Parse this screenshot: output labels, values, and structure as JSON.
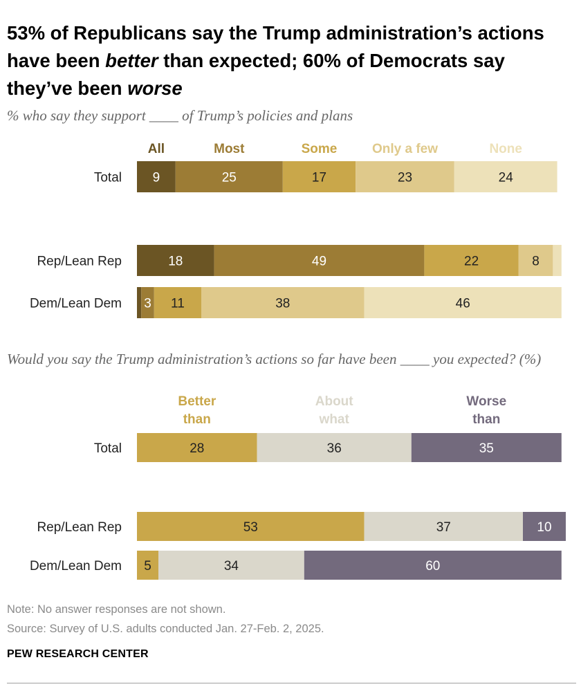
{
  "header": {
    "title_parts": [
      {
        "text": "53% of Republicans say the Trump administration’s actions have been ",
        "italic": false
      },
      {
        "text": "better",
        "italic": true
      },
      {
        "text": " than expected; 60% of Democrats say they’ve been ",
        "italic": false
      },
      {
        "text": "worse",
        "italic": true
      }
    ]
  },
  "chart_data": [
    {
      "type": "bar",
      "orientation": "horizontal",
      "stacked": true,
      "subtitle": "% who say they support ____ of Trump’s policies and plans",
      "categories": [
        "Total",
        "Rep/Lean Rep",
        "Dem/Lean Dem"
      ],
      "series": [
        {
          "name": "All",
          "color": "#6b5524",
          "label_color": "#ffffff",
          "header_color": "#6b5524",
          "values": [
            9,
            18,
            1
          ]
        },
        {
          "name": "Most",
          "color": "#9c7c35",
          "label_color": "#ffffff",
          "header_color": "#9c7c35",
          "values": [
            25,
            49,
            3
          ]
        },
        {
          "name": "Some",
          "color": "#c9a74a",
          "label_color": "#222222",
          "header_color": "#c9a74a",
          "values": [
            17,
            22,
            11
          ]
        },
        {
          "name": "Only a few",
          "color": "#dfc98b",
          "label_color": "#222222",
          "header_color": "#dfc98b",
          "values": [
            23,
            8,
            38
          ]
        },
        {
          "name": "None",
          "color": "#ede1b9",
          "label_color": "#222222",
          "header_color": "#ede1b9",
          "values": [
            24,
            2,
            46
          ]
        }
      ],
      "labels": [
        [
          "9",
          "25",
          "17",
          "23",
          "24"
        ],
        [
          "18",
          "49",
          "22",
          "8",
          ""
        ],
        [
          "",
          "3",
          "11",
          "38",
          "46"
        ]
      ],
      "xlim": [
        0,
        100
      ],
      "legend": "top"
    },
    {
      "type": "bar",
      "orientation": "horizontal",
      "stacked": true,
      "subtitle": "Would you say the Trump administration’s actions so far have been ____ you expected? (%)",
      "categories": [
        "Total",
        "Rep/Lean Rep",
        "Dem/Lean Dem"
      ],
      "series": [
        {
          "name": "Better than",
          "name_lines": [
            "Better",
            "than"
          ],
          "color": "#c9a74a",
          "label_color": "#222222",
          "header_color": "#c9a74a",
          "values": [
            28,
            53,
            5
          ]
        },
        {
          "name": "About what",
          "name_lines": [
            "About",
            "what"
          ],
          "color": "#dad7cb",
          "label_color": "#222222",
          "header_color": "#dad7cb",
          "values": [
            36,
            37,
            34
          ]
        },
        {
          "name": "Worse than",
          "name_lines": [
            "Worse",
            "than"
          ],
          "color": "#736a7d",
          "label_color": "#ffffff",
          "header_color": "#736a7d",
          "values": [
            35,
            10,
            60
          ]
        }
      ],
      "labels": [
        [
          "28",
          "36",
          "35"
        ],
        [
          "53",
          "37",
          "10"
        ],
        [
          "5",
          "34",
          "60"
        ]
      ],
      "xlim": [
        0,
        100
      ],
      "legend": "top"
    }
  ],
  "footer": {
    "note": "Note: No answer responses are not shown.",
    "source": "Source: Survey of U.S. adults conducted Jan. 27-Feb. 2, 2025.",
    "brand": "PEW RESEARCH CENTER"
  }
}
